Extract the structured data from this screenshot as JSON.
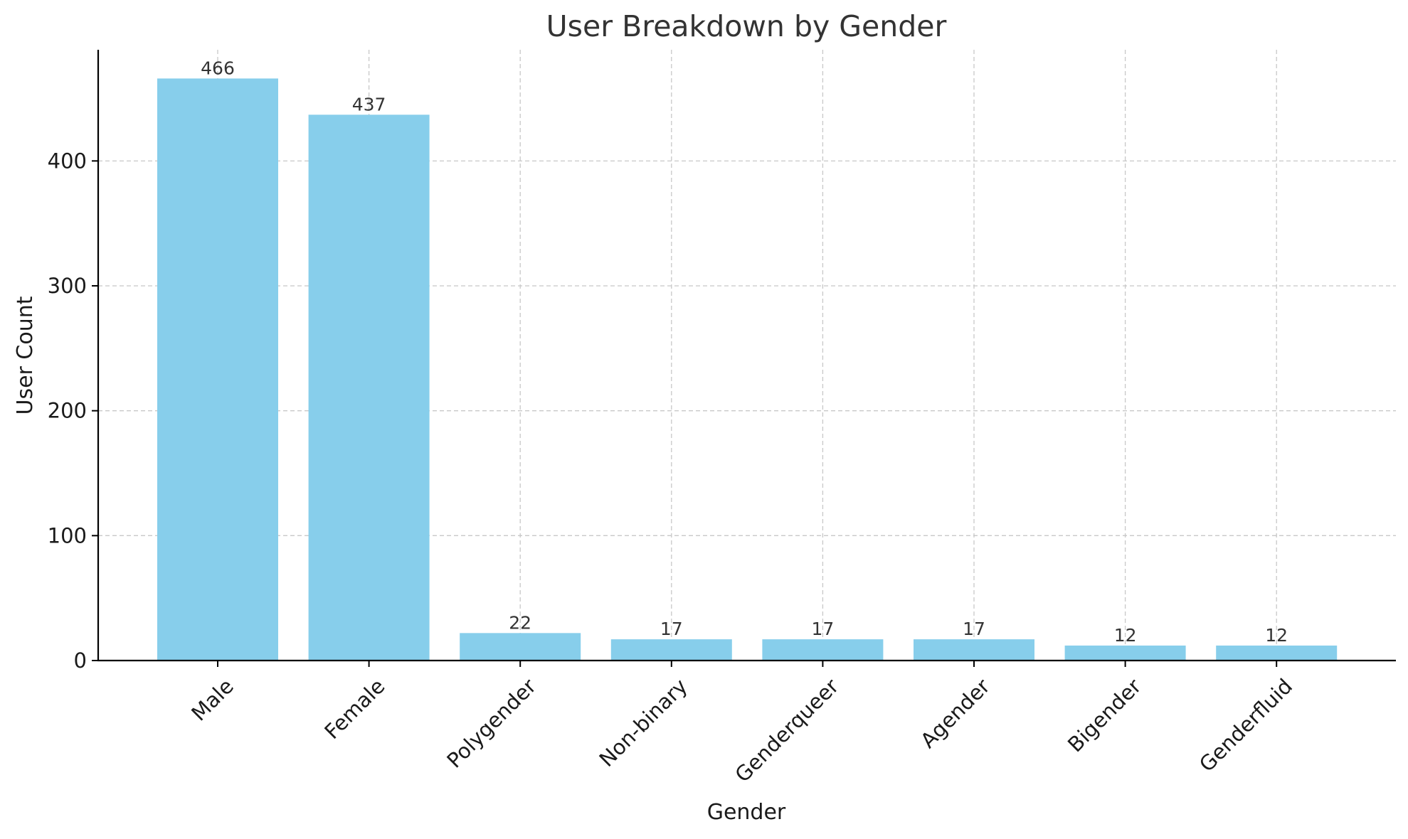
{
  "chart_data": {
    "type": "bar",
    "title": "User Breakdown by Gender",
    "xlabel": "Gender",
    "ylabel": "User Count",
    "categories": [
      "Male",
      "Female",
      "Polygender",
      "Non-binary",
      "Genderqueer",
      "Agender",
      "Bigender",
      "Genderfluid"
    ],
    "values": [
      466,
      437,
      22,
      17,
      17,
      17,
      12,
      12
    ],
    "ylim": [
      0,
      489
    ],
    "yticks": [
      0,
      100,
      200,
      300,
      400
    ],
    "grid": true,
    "bar_color": "#87CEEB",
    "data_labels": true
  }
}
